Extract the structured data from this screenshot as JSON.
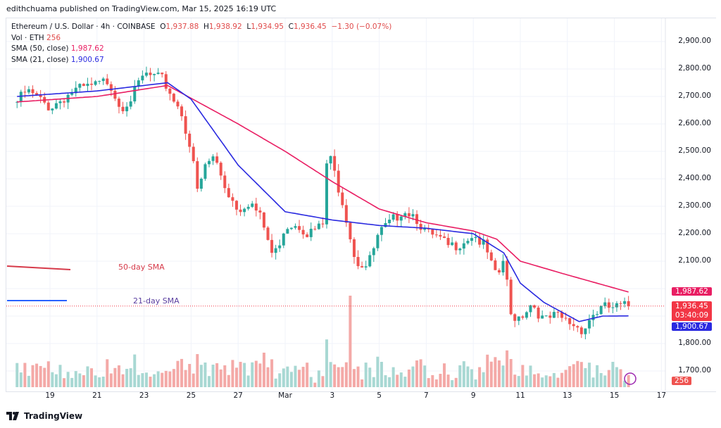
{
  "publisher": "edithchuama published on TradingView.com, Mar 15, 2025 16:19 UTC",
  "legend": {
    "symbol": "Ethereum / U.S. Dollar · 4h · COINBASE",
    "open_label": "O",
    "open": "1,937.88",
    "high_label": "H",
    "high": "1,938.92",
    "low_label": "L",
    "low": "1,934.95",
    "close_label": "C",
    "close": "1,936.45",
    "change": "−1.30 (−0.07%)",
    "vol_label": "Vol · ETH",
    "vol": "256",
    "sma50_label": "SMA (50, close)",
    "sma50": "1,987.62",
    "sma21_label": "SMA (21, close)",
    "sma21": "1,900.67"
  },
  "price_tags": {
    "sma50": "1,987.62",
    "last": "1,936.45",
    "countdown": "03:40:09",
    "sma21": "1,900.67",
    "volume": "256"
  },
  "annotations": {
    "sma50": "50-day SMA",
    "sma21": "21-day SMA"
  },
  "footer": {
    "brand": "TradingView"
  },
  "colors": {
    "up": "#26a69a",
    "down": "#ef5350",
    "sma50": "#e91e63",
    "sma21": "#2a2ae0",
    "anno50": "#d63a4a",
    "anno21": "#2962ff"
  },
  "chart_data": {
    "type": "candlestick",
    "interval": "4h",
    "ylim": [
      1650,
      2950
    ],
    "y_ticks": [
      "2,900.00",
      "2,800.00",
      "2,700.00",
      "2,600.00",
      "2,500.00",
      "2,400.00",
      "2,300.00",
      "2,200.00",
      "2,100.00",
      "1,800.00",
      "1,700.00"
    ],
    "x_ticks": [
      "19",
      "21",
      "23",
      "25",
      "27",
      "Mar",
      "3",
      "5",
      "7",
      "9",
      "11",
      "13",
      "15",
      "17"
    ],
    "grid": true,
    "price_close_approx": [
      [
        "Feb 17.6",
        2680
      ],
      [
        "Feb 18",
        2720
      ],
      [
        "Feb 19",
        2660
      ],
      [
        "Feb 20",
        2720
      ],
      [
        "Feb 21",
        2740
      ],
      [
        "Feb 21.5",
        2760
      ],
      [
        "Feb 22",
        2660
      ],
      [
        "Feb 22.5",
        2700
      ],
      [
        "Feb 23",
        2780
      ],
      [
        "Feb 23.8",
        2760
      ],
      [
        "Feb 24.2",
        2700
      ],
      [
        "Feb 24.6",
        2640
      ],
      [
        "Feb 25",
        2500
      ],
      [
        "Feb 25.3",
        2340
      ],
      [
        "Feb 25.6",
        2450
      ],
      [
        "Feb 26",
        2480
      ],
      [
        "Feb 26.5",
        2360
      ],
      [
        "Feb 27",
        2290
      ],
      [
        "Feb 27.5",
        2320
      ],
      [
        "Feb 28",
        2250
      ],
      [
        "Feb 28.5",
        2110
      ],
      [
        "Mar 1",
        2230
      ],
      [
        "Mar 1.5",
        2240
      ],
      [
        "Mar 2",
        2200
      ],
      [
        "Mar 2.6",
        2230
      ],
      [
        "Mar 2.8",
        2500
      ],
      [
        "Mar 3",
        2450
      ],
      [
        "Mar 3.5",
        2300
      ],
      [
        "Mar 4",
        2100
      ],
      [
        "Mar 4.5",
        2080
      ],
      [
        "Mar 5",
        2200
      ],
      [
        "Mar 5.5",
        2240
      ],
      [
        "Mar 6",
        2290
      ],
      [
        "Mar 6.5",
        2270
      ],
      [
        "Mar 7",
        2200
      ],
      [
        "Mar 7.5",
        2180
      ],
      [
        "Mar 8",
        2150
      ],
      [
        "Mar 8.5",
        2170
      ],
      [
        "Mar 9",
        2200
      ],
      [
        "Mar 9.5",
        2150
      ],
      [
        "Mar 10",
        2030
      ],
      [
        "Mar 10.3",
        2110
      ],
      [
        "Mar 10.6",
        1900
      ],
      [
        "Mar 11",
        1900
      ],
      [
        "Mar 11.5",
        1950
      ],
      [
        "Mar 12",
        1880
      ],
      [
        "Mar 12.5",
        1900
      ],
      [
        "Mar 13",
        1880
      ],
      [
        "Mar 13.7",
        1850
      ],
      [
        "Mar 14",
        1900
      ],
      [
        "Mar 14.5",
        1930
      ],
      [
        "Mar 15",
        1930
      ],
      [
        "Mar 15.6",
        1936.45
      ]
    ],
    "series": [
      {
        "name": "SMA (50, close)",
        "values": [
          [
            "Feb 17.6",
            2680
          ],
          [
            "Feb 21",
            2700
          ],
          [
            "Feb 24",
            2740
          ],
          [
            "Feb 27",
            2600
          ],
          [
            "Mar 1",
            2500
          ],
          [
            "Mar 3",
            2390
          ],
          [
            "Mar 5",
            2290
          ],
          [
            "Mar 7",
            2240
          ],
          [
            "Mar 9",
            2210
          ],
          [
            "Mar 10",
            2180
          ],
          [
            "Mar 11",
            2100
          ],
          [
            "Mar 13",
            2050
          ],
          [
            "Mar 15.6",
            1987.62
          ]
        ]
      },
      {
        "name": "SMA (21, close)",
        "values": [
          [
            "Feb 17.6",
            2700
          ],
          [
            "Feb 21",
            2720
          ],
          [
            "Feb 24",
            2750
          ],
          [
            "Feb 25",
            2690
          ],
          [
            "Feb 27",
            2450
          ],
          [
            "Mar 1",
            2280
          ],
          [
            "Mar 3",
            2250
          ],
          [
            "Mar 5",
            2230
          ],
          [
            "Mar 7",
            2220
          ],
          [
            "Mar 9",
            2200
          ],
          [
            "Mar 10.3",
            2130
          ],
          [
            "Mar 11",
            2020
          ],
          [
            "Mar 12",
            1950
          ],
          [
            "Mar 13.5",
            1880
          ],
          [
            "Mar 14.5",
            1900
          ],
          [
            "Mar 15.6",
            1900.67
          ]
        ]
      }
    ]
  }
}
